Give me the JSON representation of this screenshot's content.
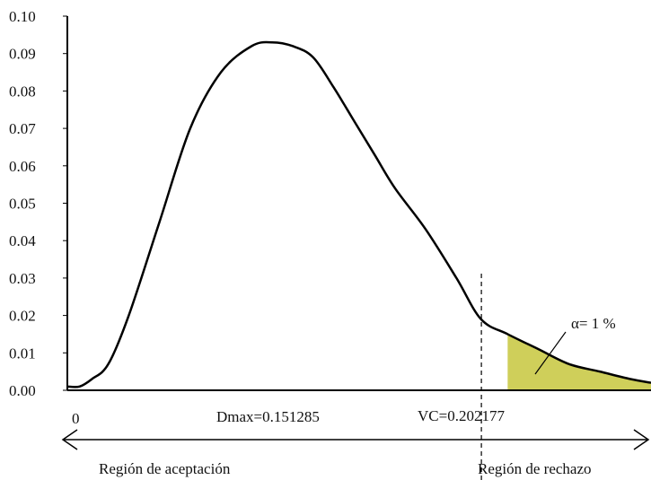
{
  "chart_data": {
    "type": "area",
    "y_ticks": [
      "0.00",
      "0.01",
      "0.02",
      "0.03",
      "0.04",
      "0.05",
      "0.06",
      "0.07",
      "0.08",
      "0.09",
      "0.10"
    ],
    "ylim": [
      0,
      0.1
    ],
    "series": [
      {
        "x": [
          0.0,
          0.006,
          0.012,
          0.02,
          0.03,
          0.045,
          0.06,
          0.075,
          0.09,
          0.1,
          0.11,
          0.12,
          0.13,
          0.14,
          0.15,
          0.16,
          0.175,
          0.19,
          0.202,
          0.215,
          0.23,
          0.245,
          0.26,
          0.275,
          0.285
        ],
        "y": [
          0.001,
          0.001,
          0.003,
          0.007,
          0.02,
          0.045,
          0.07,
          0.085,
          0.092,
          0.093,
          0.092,
          0.089,
          0.081,
          0.072,
          0.063,
          0.054,
          0.043,
          0.03,
          0.019,
          0.015,
          0.011,
          0.007,
          0.005,
          0.003,
          0.002
        ]
      }
    ],
    "origin_label": "0",
    "dmax_label": "Dmax=0.151285",
    "vc_label": "VC=0.202177",
    "vc_value": 0.202177,
    "alpha_label": "α= 1 %",
    "acceptance_label": "Región de aceptación",
    "rejection_label": "Región de rechazo",
    "colors": {
      "curve": "#000000",
      "fill": "#cfcf5a"
    }
  }
}
